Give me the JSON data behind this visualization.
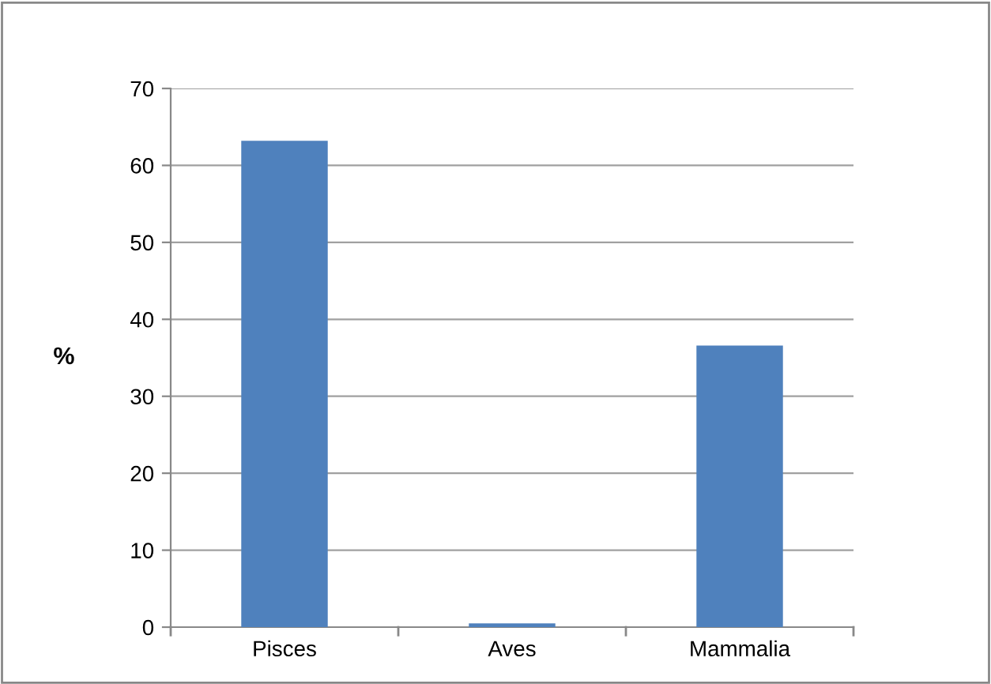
{
  "chart_data": {
    "type": "bar",
    "ylabel": "%",
    "categories": [
      "Pisces",
      "Aves",
      "Mammalia"
    ],
    "values": [
      63.2,
      0.5,
      36.6
    ],
    "color": "#4f81bd",
    "ylim": [
      0,
      70
    ],
    "yticks": [
      0,
      10,
      20,
      30,
      40,
      50,
      60,
      70
    ],
    "grid": "y"
  }
}
